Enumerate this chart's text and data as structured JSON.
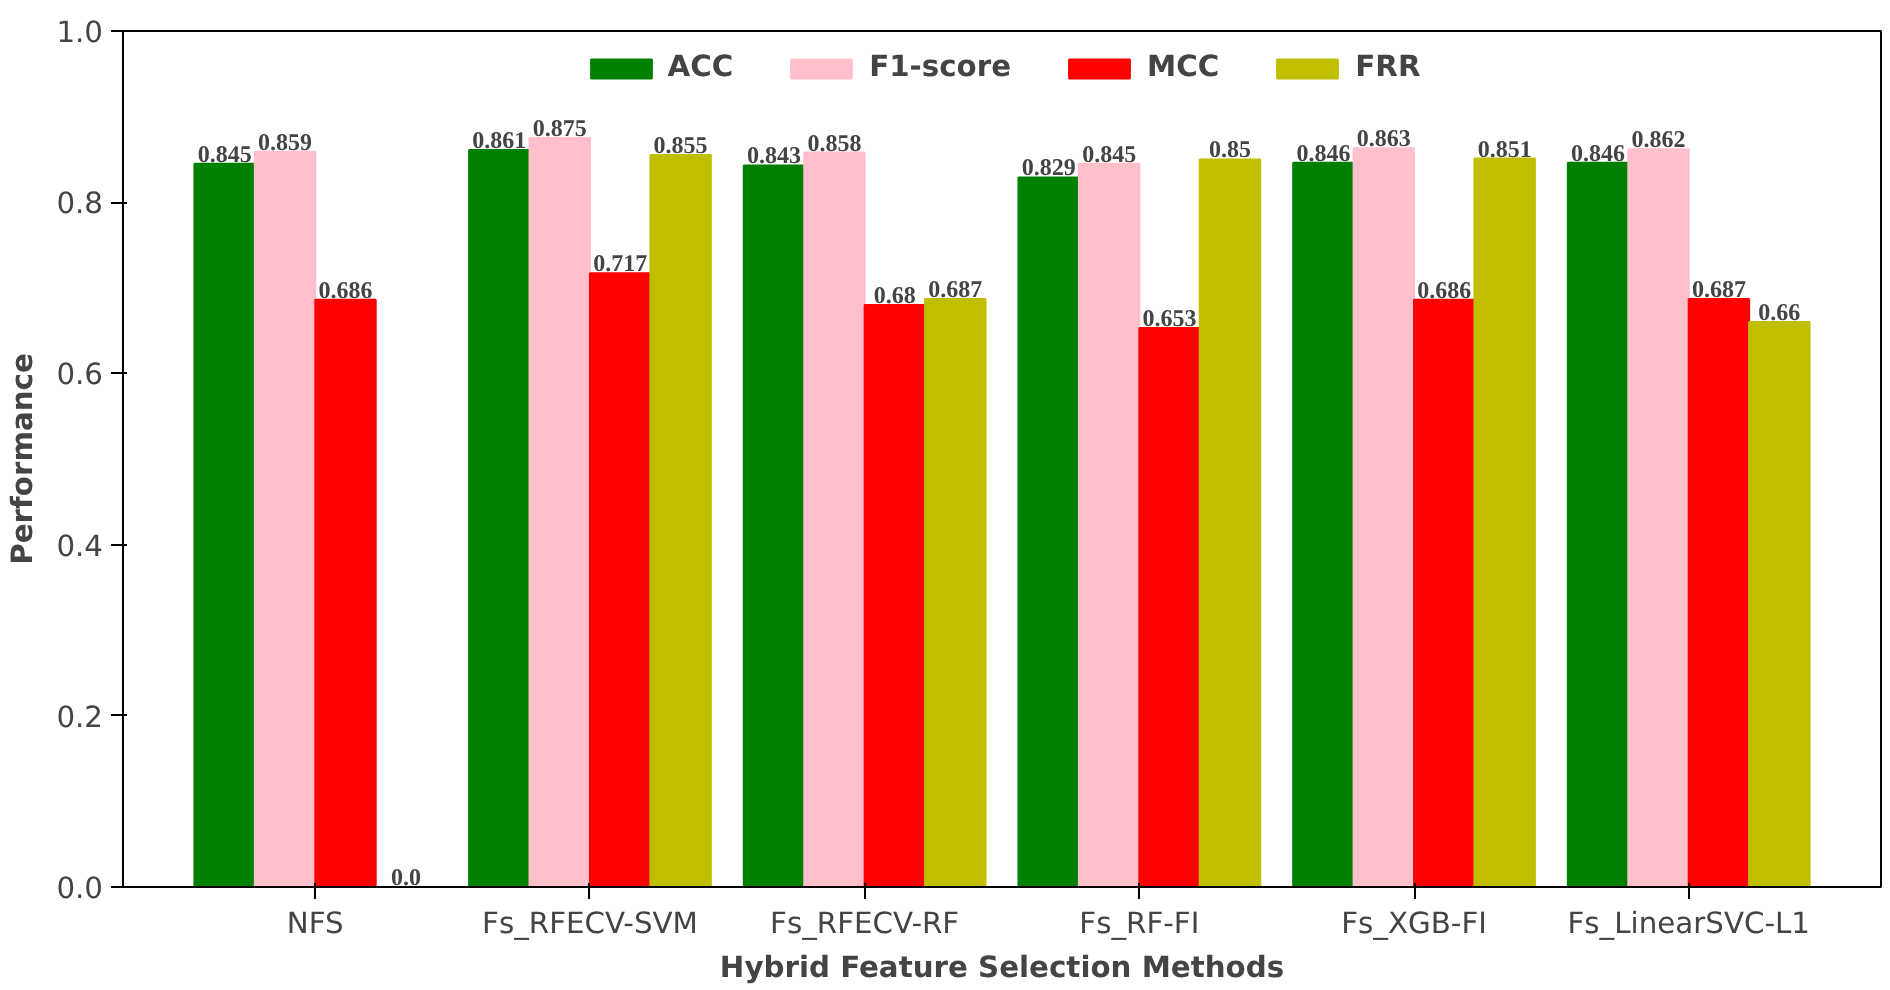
{
  "chart_data": {
    "type": "bar",
    "xlabel": "Hybrid Feature Selection Methods",
    "ylabel": "Performance",
    "categories": [
      "NFS",
      "Fs_RFECV-SVM",
      "Fs_RFECV-RF",
      "Fs_RF-FI",
      "Fs_XGB-FI",
      "Fs_LinearSVC-L1"
    ],
    "series": [
      {
        "name": "ACC",
        "color": "#008000",
        "values": [
          0.845,
          0.861,
          0.843,
          0.829,
          0.846,
          0.846
        ],
        "value_labels": [
          "0.845",
          "0.861",
          "0.843",
          "0.829",
          "0.846",
          "0.846"
        ]
      },
      {
        "name": "F1-score",
        "color": "#ffc0cb",
        "values": [
          0.859,
          0.875,
          0.858,
          0.845,
          0.863,
          0.862
        ],
        "value_labels": [
          "0.859",
          "0.875",
          "0.858",
          "0.845",
          "0.863",
          "0.862"
        ]
      },
      {
        "name": "MCC",
        "color": "#ff0000",
        "values": [
          0.686,
          0.717,
          0.68,
          0.653,
          0.686,
          0.687
        ],
        "value_labels": [
          "0.686",
          "0.717",
          "0.68",
          "0.653",
          "0.686",
          "0.687"
        ]
      },
      {
        "name": "FRR",
        "color": "#bfbf00",
        "values": [
          0.0,
          0.855,
          0.687,
          0.85,
          0.851,
          0.66
        ],
        "value_labels": [
          "0.0",
          "0.855",
          "0.687",
          "0.85",
          "0.851",
          "0.66"
        ]
      }
    ],
    "ylim": [
      0,
      1
    ],
    "yticks": [
      {
        "value": 0,
        "label": "0.0"
      },
      {
        "value": 0.2,
        "label": "0.2"
      },
      {
        "value": 0.4,
        "label": "0.4"
      },
      {
        "value": 0.6,
        "label": "0.6"
      },
      {
        "value": 0.8,
        "label": "0.8"
      },
      {
        "value": 1,
        "label": "1.0"
      }
    ],
    "grid": false,
    "legend": "top"
  }
}
